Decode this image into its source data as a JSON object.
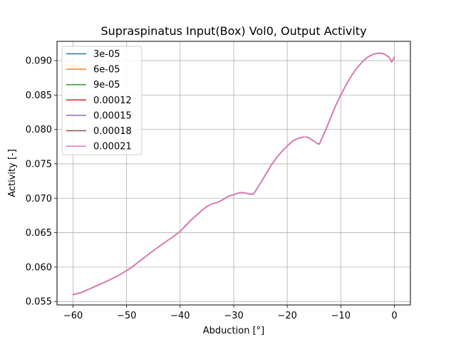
{
  "chart_data": {
    "type": "line",
    "title": "Supraspinatus Input(Box) Vol0, Output Activity",
    "xlabel": "Abduction [°]",
    "ylabel": "Activity [-]",
    "xlim": [
      -63,
      3
    ],
    "ylim": [
      0.0545,
      0.0928
    ],
    "xticks": [
      -60,
      -50,
      -40,
      -30,
      -20,
      -10,
      0
    ],
    "yticks": [
      0.055,
      0.06,
      0.065,
      0.07,
      0.075,
      0.08,
      0.085,
      0.09
    ],
    "ytick_labels": [
      "0.055",
      "0.060",
      "0.065",
      "0.070",
      "0.075",
      "0.080",
      "0.085",
      "0.090"
    ],
    "grid": true,
    "legend_position": "top-left",
    "series": [
      {
        "name": "3e-05",
        "color": "#1f77b4"
      },
      {
        "name": "6e-05",
        "color": "#ff7f0e"
      },
      {
        "name": "9e-05",
        "color": "#2ca02c"
      },
      {
        "name": "0.00012",
        "color": "#d62728"
      },
      {
        "name": "0.00015",
        "color": "#9467bd"
      },
      {
        "name": "0.00018",
        "color": "#8c564b"
      },
      {
        "name": "0.00021",
        "color": "#e377c2"
      }
    ],
    "x": [
      -60,
      -58.5,
      -57,
      -55,
      -53,
      -51,
      -49,
      -47,
      -45,
      -43,
      -41,
      -40,
      -38,
      -36,
      -35,
      -34,
      -33,
      -32,
      -31,
      -30,
      -29,
      -28,
      -27,
      -26.3,
      -25,
      -24,
      -23,
      -22,
      -21,
      -20,
      -19,
      -18,
      -17,
      -16.5,
      -16,
      -15,
      -14.3,
      -14,
      -13,
      -12,
      -11,
      -10,
      -9,
      -8,
      -7,
      -6,
      -5,
      -4,
      -3,
      -2,
      -1,
      -0.5,
      0
    ],
    "y": [
      0.056,
      0.0563,
      0.0568,
      0.0575,
      0.0582,
      0.059,
      0.06,
      0.0612,
      0.0624,
      0.0635,
      0.0646,
      0.0652,
      0.0668,
      0.0682,
      0.0688,
      0.0692,
      0.0694,
      0.0698,
      0.0703,
      0.0705,
      0.0708,
      0.0708,
      0.0706,
      0.0706,
      0.0722,
      0.0735,
      0.0748,
      0.0759,
      0.0768,
      0.0776,
      0.0783,
      0.0787,
      0.0789,
      0.0789,
      0.0788,
      0.0783,
      0.0779,
      0.0779,
      0.0796,
      0.0815,
      0.0834,
      0.085,
      0.0865,
      0.0878,
      0.0889,
      0.0898,
      0.0905,
      0.0909,
      0.0911,
      0.091,
      0.0905,
      0.0898,
      0.0905
    ]
  }
}
